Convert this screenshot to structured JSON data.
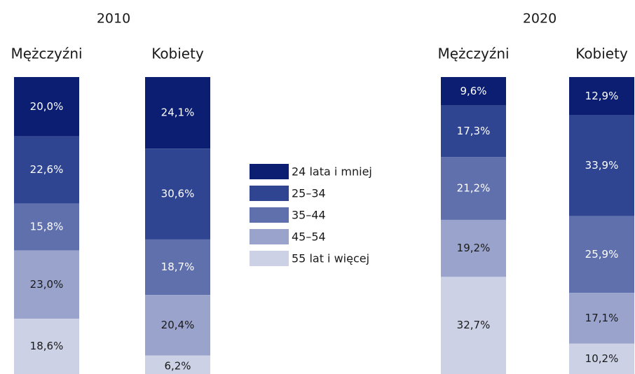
{
  "chart_data": {
    "type": "bar",
    "stacked": true,
    "groups": [
      "2010",
      "2020"
    ],
    "categories": [
      "Mężczyźni",
      "Kobiety",
      "Mężczyźni",
      "Kobiety"
    ],
    "series": [
      {
        "name": "24 lata i mniej",
        "color": "#0b1e72",
        "values": [
          20.0,
          24.1,
          9.6,
          12.9
        ],
        "value_labels": [
          "20,0%",
          "24,1%",
          "9,6%",
          "12,9%"
        ]
      },
      {
        "name": "25–34",
        "color": "#2f4592",
        "values": [
          22.6,
          30.6,
          17.3,
          33.9
        ],
        "value_labels": [
          "22,6%",
          "30,6%",
          "17,3%",
          "33,9%"
        ]
      },
      {
        "name": "35–44",
        "color": "#5f70ad",
        "values": [
          15.8,
          18.7,
          21.2,
          25.9
        ],
        "value_labels": [
          "15,8%",
          "18,7%",
          "21,2%",
          "25,9%"
        ]
      },
      {
        "name": "45–54",
        "color": "#99a3cb",
        "values": [
          23.0,
          20.4,
          19.2,
          17.1
        ],
        "value_labels": [
          "23,0%",
          "20,4%",
          "19,2%",
          "17,1%"
        ]
      },
      {
        "name": "55 lat i więcej",
        "color": "#ccd1e5",
        "values": [
          18.6,
          6.2,
          32.7,
          10.2
        ],
        "value_labels": [
          "18,6%",
          "6,2%",
          "32,7%",
          "10,2%"
        ]
      }
    ]
  }
}
